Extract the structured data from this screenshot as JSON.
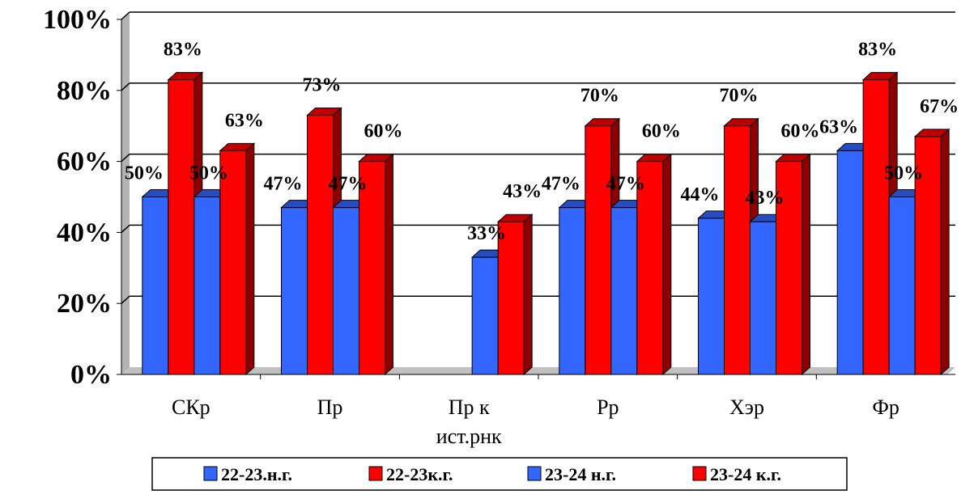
{
  "chart_data": {
    "type": "bar",
    "title": "",
    "xlabel": "",
    "ylabel": "",
    "ylim": [
      0,
      100
    ],
    "y_tick_labels": [
      "0%",
      "20%",
      "40%",
      "60%",
      "80%",
      "100%"
    ],
    "grid": true,
    "legend_position": "bottom",
    "categories": [
      "СКр",
      "Пр",
      "Пр к ист.рнк",
      "Рр",
      "Хэр",
      "Фр"
    ],
    "category_lines": [
      [
        "СКр"
      ],
      [
        "Пр"
      ],
      [
        "Пр к",
        "ист.рнк"
      ],
      [
        "Рр"
      ],
      [
        "Хэр"
      ],
      [
        "Фр"
      ]
    ],
    "series": [
      {
        "name": "22-23.н.г.",
        "color": "#3366ff",
        "values": [
          50,
          47,
          null,
          47,
          44,
          63
        ],
        "labels": [
          "50%",
          "47%",
          "",
          "47%",
          "44%",
          "63%"
        ]
      },
      {
        "name": "22-23к.г.",
        "color": "#ff0000",
        "values": [
          83,
          73,
          null,
          70,
          70,
          83
        ],
        "labels": [
          "83%",
          "73%",
          "",
          "70%",
          "70%",
          "83%"
        ]
      },
      {
        "name": "23-24 н.г.",
        "color": "#3366ff",
        "values": [
          50,
          47,
          33,
          47,
          43,
          50
        ],
        "labels": [
          "50%",
          "47%",
          "33%",
          "47%",
          "43%",
          "50%"
        ]
      },
      {
        "name": "23-24 к.г.",
        "color": "#ff0000",
        "values": [
          63,
          60,
          43,
          60,
          60,
          67
        ],
        "labels": [
          "63%",
          "60%",
          "43%",
          "60%",
          "60%",
          "67%"
        ]
      }
    ]
  }
}
